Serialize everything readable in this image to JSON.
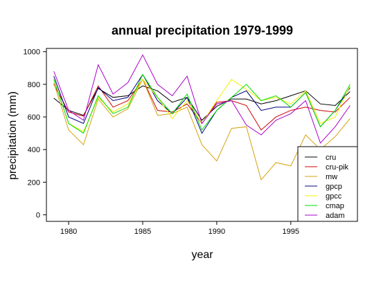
{
  "chart_data": {
    "type": "line",
    "title": "annual precipitation 1979-1999",
    "xlabel": "year",
    "ylabel": "precipitation (mm)",
    "xlim": [
      1978.5,
      1999.5
    ],
    "ylim": [
      -40,
      1020
    ],
    "x_ticks": [
      1980,
      1985,
      1990,
      1995
    ],
    "y_ticks": [
      0,
      200,
      400,
      600,
      800,
      1000
    ],
    "legend_position": "bottom-right",
    "x": [
      1979,
      1980,
      1981,
      1982,
      1983,
      1984,
      1985,
      1986,
      1987,
      1988,
      1989,
      1990,
      1991,
      1992,
      1993,
      1994,
      1995,
      1996,
      1997,
      1998,
      1999
    ],
    "series": [
      {
        "name": "cru",
        "color": "#000000",
        "values": [
          715,
          640,
          610,
          775,
          720,
          730,
          790,
          760,
          690,
          720,
          580,
          665,
          710,
          710,
          680,
          700,
          730,
          760,
          680,
          670,
          755
        ]
      },
      {
        "name": "cru-pik",
        "color": "#cc0000",
        "values": [
          800,
          630,
          605,
          790,
          660,
          700,
          830,
          640,
          630,
          680,
          560,
          690,
          700,
          670,
          520,
          600,
          640,
          660,
          640,
          630,
          720
        ]
      },
      {
        "name": "mw",
        "color": "#d4a20a",
        "values": [
          810,
          520,
          430,
          710,
          600,
          650,
          830,
          610,
          620,
          660,
          430,
          330,
          530,
          540,
          215,
          320,
          300,
          490,
          400,
          480,
          590
        ]
      },
      {
        "name": "gpcp",
        "color": "#000080",
        "values": [
          850,
          600,
          560,
          780,
          700,
          720,
          860,
          700,
          620,
          720,
          500,
          640,
          720,
          760,
          640,
          660,
          660,
          750,
          540,
          640,
          780
        ]
      },
      {
        "name": "gpcc",
        "color": "#f0f000",
        "values": [
          830,
          560,
          510,
          720,
          630,
          680,
          830,
          720,
          590,
          700,
          560,
          700,
          830,
          770,
          700,
          720,
          680,
          760,
          560,
          600,
          790
        ]
      },
      {
        "name": "cmap",
        "color": "#00dd00",
        "values": [
          830,
          560,
          500,
          730,
          620,
          660,
          860,
          720,
          620,
          740,
          520,
          640,
          720,
          800,
          700,
          730,
          660,
          750,
          540,
          640,
          800
        ]
      },
      {
        "name": "adam",
        "color": "#aa00cc",
        "values": [
          880,
          640,
          580,
          920,
          740,
          810,
          980,
          800,
          730,
          850,
          560,
          680,
          700,
          550,
          490,
          580,
          620,
          700,
          440,
          540,
          670
        ]
      }
    ]
  }
}
